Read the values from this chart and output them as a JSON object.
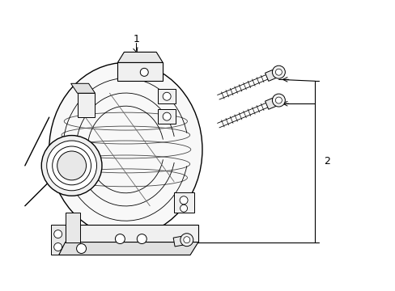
{
  "background_color": "#ffffff",
  "line_color": "#000000",
  "label_color": "#000000",
  "part1_label": "1",
  "part2_label": "2",
  "fig_width": 4.89,
  "fig_height": 3.6,
  "dpi": 100
}
